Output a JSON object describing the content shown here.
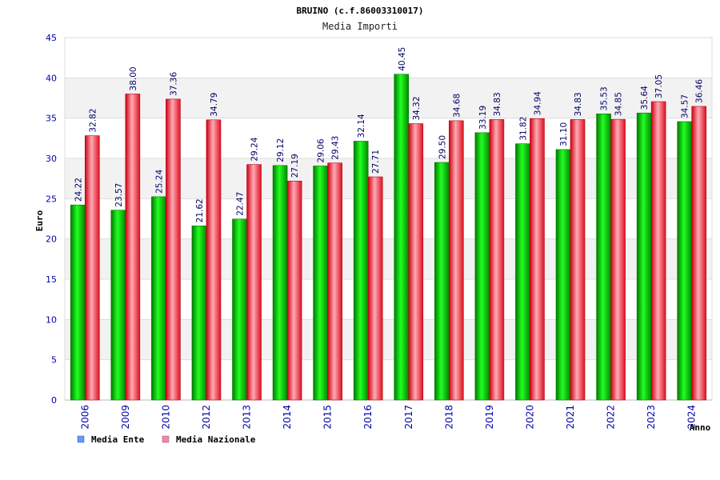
{
  "chart_data": {
    "type": "bar",
    "title": "BRUINO (c.f.86003310017)",
    "subtitle": "Media Importi",
    "ylabel": "Euro",
    "xlabel": "Anno",
    "ylim": [
      0,
      45
    ],
    "yticks": [
      0,
      5,
      10,
      15,
      20,
      25,
      30,
      35,
      40,
      45
    ],
    "categories": [
      "2006",
      "2009",
      "2010",
      "2012",
      "2013",
      "2014",
      "2015",
      "2016",
      "2017",
      "2018",
      "2019",
      "2020",
      "2021",
      "2022",
      "2023",
      "2024"
    ],
    "series": [
      {
        "name": "Media Ente",
        "color": "#00cc00",
        "legend_color": "#6699ff",
        "values": [
          24.22,
          23.57,
          25.24,
          21.62,
          22.47,
          29.12,
          29.06,
          32.14,
          40.45,
          29.5,
          33.19,
          31.82,
          31.1,
          35.53,
          35.64,
          34.57
        ],
        "labels": [
          "24.22",
          "23.57",
          "25.24",
          "21.62",
          "22.47",
          "29.12",
          "29.06",
          "32.14",
          "40.45",
          "29.50",
          "33.19",
          "31.82",
          "31.10",
          "35.53",
          "35.64",
          "34.57"
        ]
      },
      {
        "name": "Media Nazionale",
        "color": "#ee2233",
        "legend_color": "#ee88aa",
        "values": [
          32.82,
          38.0,
          37.36,
          34.79,
          29.24,
          27.19,
          29.43,
          27.71,
          34.32,
          34.68,
          34.83,
          34.94,
          34.83,
          34.85,
          37.05,
          36.46
        ],
        "labels": [
          "32.82",
          "38.00",
          "37.36",
          "34.79",
          "29.24",
          "27.19",
          "29.43",
          "27.71",
          "34.32",
          "34.68",
          "34.83",
          "34.94",
          "34.83",
          "34.85",
          "37.05",
          "36.46"
        ]
      }
    ],
    "grid": true,
    "legend_position": "bottom-left"
  }
}
